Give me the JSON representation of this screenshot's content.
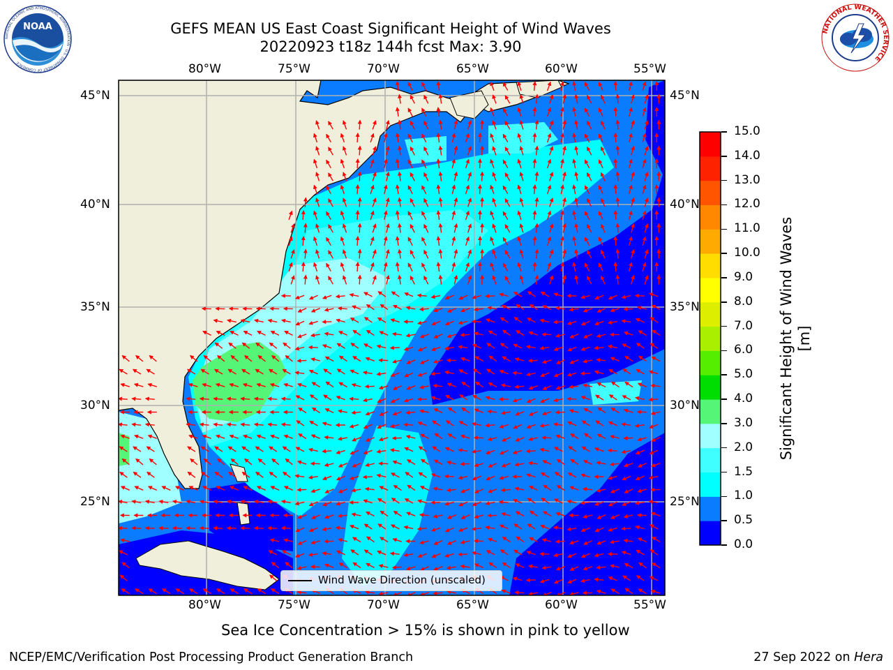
{
  "title": {
    "line1": "GEFS MEAN US East Coast Significant Height of Wind Waves",
    "line2": "20220923 t18z 144h fcst   Max: 3.90"
  },
  "logos": {
    "noaa_text": "NOAA",
    "noaa_ring": "NATIONAL OCEANIC AND ATMOSPHERIC ADMINISTRATION · U.S. DEPARTMENT OF COMMERCE",
    "nws_ring": "NATIONAL WEATHER SERVICE"
  },
  "map": {
    "lon_labels": [
      "80°W",
      "75°W",
      "70°W",
      "65°W",
      "60°W",
      "55°W"
    ],
    "lat_labels": [
      "45°N",
      "40°N",
      "35°N",
      "30°N",
      "25°N"
    ],
    "lon_range": [
      -85,
      -54.5
    ],
    "lat_range": [
      20,
      46
    ],
    "grid": true,
    "land_color": "#efefdc",
    "arrow_color": "#ff0000",
    "legend_label": "Wind Wave Direction (unscaled)"
  },
  "colorbar": {
    "label": "Significant Height of Wind Waves [m]",
    "ticks": [
      "0.0",
      "0.5",
      "1.0",
      "1.5",
      "2.0",
      "3.0",
      "4.0",
      "5.0",
      "6.0",
      "7.0",
      "8.0",
      "9.0",
      "10.0",
      "11.0",
      "12.0",
      "13.0",
      "14.0",
      "15.0"
    ],
    "colors": [
      "#0000ff",
      "#0a7cff",
      "#00ffff",
      "#40ffff",
      "#a0ffff",
      "#55f577",
      "#00dd00",
      "#55ee00",
      "#aaee00",
      "#ddee00",
      "#ffff00",
      "#ffdd00",
      "#ffaa00",
      "#ff8800",
      "#ff5500",
      "#ff2200",
      "#ff0000"
    ]
  },
  "sea_ice_note": "Sea Ice Concentration > 15% is shown in pink to yellow",
  "footer": {
    "left": "NCEP/EMC/Verification Post Processing Product Generation Branch",
    "right_date": "27 Sep 2022 on ",
    "right_host": "Hera"
  }
}
